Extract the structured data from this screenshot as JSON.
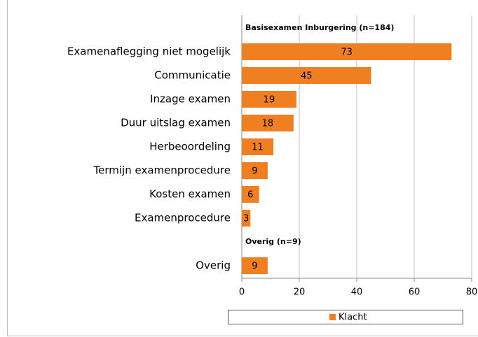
{
  "chart_data": {
    "type": "bar",
    "orientation": "horizontal",
    "color": "#f07f22",
    "groups": [
      {
        "title": "Basisexamen Inburgering (n=184)",
        "categories": [
          "Examenaflegging niet mogelijk",
          "Communicatie",
          "Inzage examen",
          "Duur uitslag examen",
          "Herbeoordeling",
          "Termijn examenprocedure",
          "Kosten examen",
          "Examenprocedure"
        ],
        "values": [
          73,
          45,
          19,
          18,
          11,
          9,
          6,
          3
        ]
      },
      {
        "title": "Overig (n=9)",
        "categories": [
          "Overig"
        ],
        "values": [
          9
        ]
      }
    ],
    "series_name": "Klacht",
    "xlim": [
      0,
      80
    ],
    "xticks": [
      0,
      20,
      40,
      60,
      80
    ],
    "grid": true,
    "legend": "bottom"
  }
}
